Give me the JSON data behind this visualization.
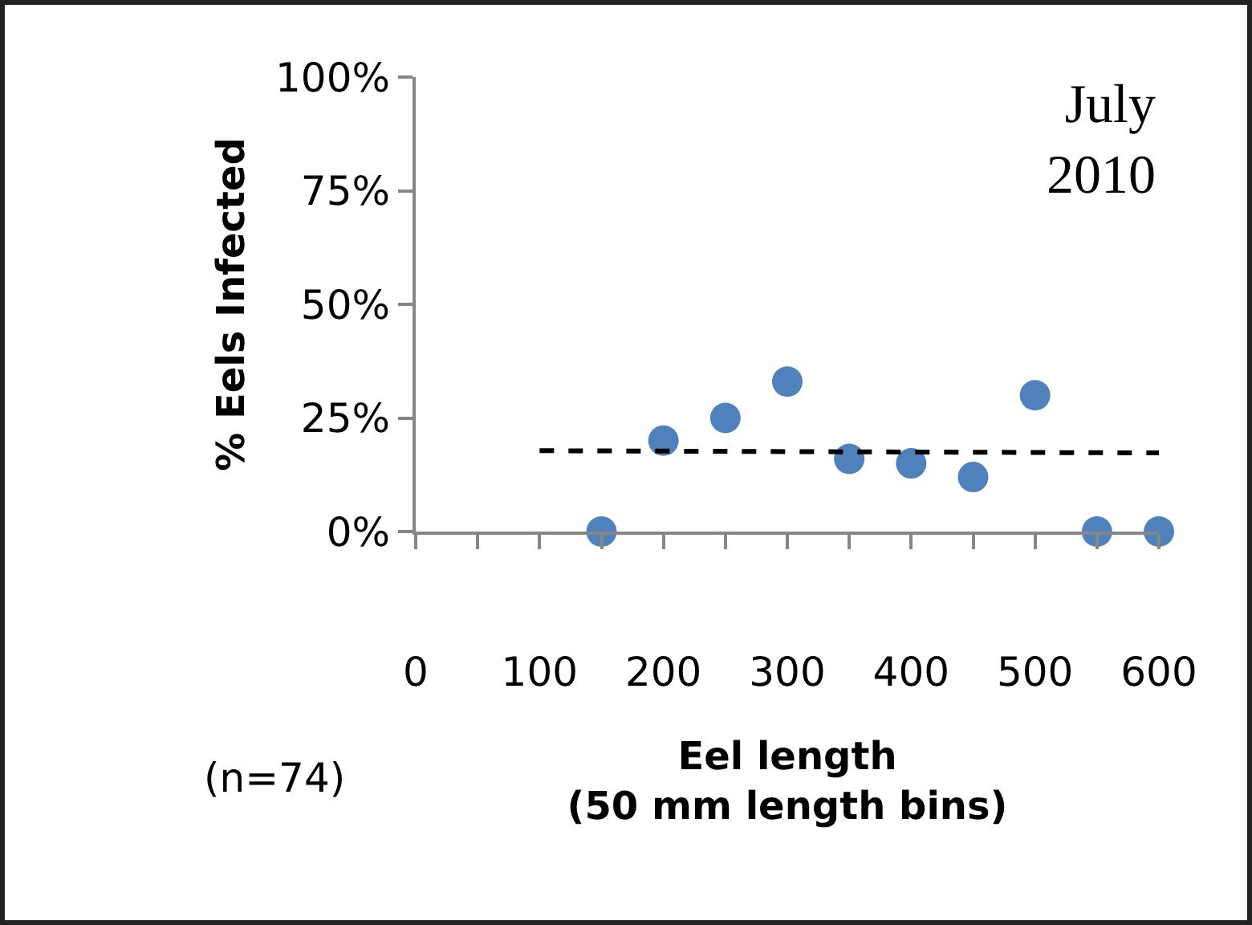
{
  "chart_data": {
    "type": "scatter",
    "xlabel": "Eel length\n(50 mm length bins)",
    "ylabel": "% Eels Infected",
    "annotations": [
      "July\n2010",
      "(n=74)"
    ],
    "series": [
      {
        "color": "#4f81bd",
        "marker": "circle",
        "x": [
          150,
          200,
          250,
          300,
          350,
          400,
          450,
          500,
          550,
          600
        ],
        "values": [
          0,
          20,
          25,
          33,
          16,
          15,
          12,
          30,
          0,
          0
        ]
      },
      {
        "type": "line",
        "color": "#000000",
        "line_style": "dashed",
        "marker": "none",
        "x": [
          100,
          600
        ],
        "values": [
          17.8,
          17.3
        ]
      }
    ],
    "xlim": [
      0,
      600
    ],
    "xticks": [
      0,
      {
        "value": 50,
        "label": null
      },
      100,
      {
        "value": 150,
        "label": null
      },
      200,
      {
        "value": 250,
        "label": null
      },
      300,
      {
        "value": 350,
        "label": null
      },
      400,
      {
        "value": 450,
        "label": null
      },
      500,
      {
        "value": 550,
        "label": null
      },
      600
    ],
    "ylim": [
      0,
      100
    ],
    "yticks": [
      {
        "value": 0,
        "label": "0%"
      },
      {
        "value": 25,
        "label": "25%"
      },
      {
        "value": 50,
        "label": "50%"
      },
      {
        "value": 75,
        "label": "75%"
      },
      {
        "value": 100,
        "label": "100%"
      }
    ],
    "grid": false
  }
}
